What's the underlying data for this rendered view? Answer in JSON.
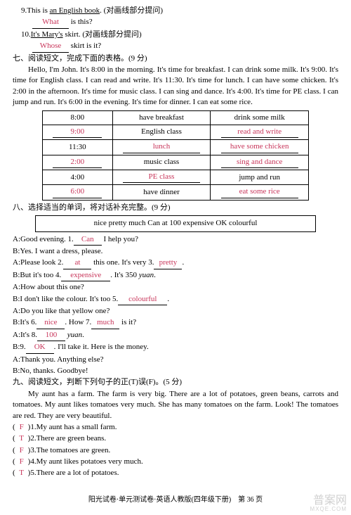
{
  "q9": {
    "num": "9.",
    "text_a": "This is ",
    "ul": "an English book",
    "text_b": ". (对画线部分提问)",
    "ans": "What",
    "tail": " is this?"
  },
  "q10": {
    "num": "10.",
    "ul": "It's Mary's",
    "text_b": " skirt. (对画线部分提问)",
    "ans": "Whose",
    "tail": " skirt is it?"
  },
  "s7": {
    "title": "七、阅读短文，完成下面的表格。(9 分)",
    "para": "Hello, I'm John. It's 8:00 in the morning. It's time for breakfast. I can drink some milk. It's 9:00. It's time for English class. I can read and write. It's 11:30. It's time for lunch. I can have some chicken. It's 2:00 in the afternoon. It's time for music class. I can sing and dance. It's 4:00. It's time for PE class. I can jump and run. It's 6:00 in the evening. It's time for dinner. I can eat some rice.",
    "rows": [
      {
        "c1": "8:00",
        "c1a": false,
        "c2": "have breakfast",
        "c2a": false,
        "c3": "drink some milk",
        "c3a": false
      },
      {
        "c1": "9:00",
        "c1a": true,
        "c2": "English class",
        "c2a": false,
        "c3": "read and write",
        "c3a": true
      },
      {
        "c1": "11:30",
        "c1a": false,
        "c2": "lunch",
        "c2a": true,
        "c3": "have some chicken",
        "c3a": true
      },
      {
        "c1": "2:00",
        "c1a": true,
        "c2": "music class",
        "c2a": false,
        "c3": "sing and dance",
        "c3a": true
      },
      {
        "c1": "4:00",
        "c1a": false,
        "c2": "PE class",
        "c2a": true,
        "c3": "jump and run",
        "c3a": false
      },
      {
        "c1": "6:00",
        "c1a": true,
        "c2": "have dinner",
        "c2a": false,
        "c3": "eat some rice",
        "c3a": true
      }
    ]
  },
  "s8": {
    "title": "八、选择适当的单词，将对话补充完整。(9 分)",
    "box": "nice    pretty    much    Can    at    100    expensive    OK    colourful",
    "l1a": "A:Good evening. 1.",
    "a1": "Can",
    "l1b": " I help you?",
    "l2": "B:Yes. I want a dress, please.",
    "l3a": "A:Please look 2.",
    "a2": "at",
    "l3b": " this one. It's very 3.",
    "a3": "pretty",
    "l3c": ".",
    "l4a": "B:But it's too 4.",
    "a4": "expensive",
    "l4b": ". It's 350 ",
    "l4i": "yuan",
    "l4c": ".",
    "l5": "A:How about this one?",
    "l6a": "B:I don't like the colour. It's too 5.",
    "a5": "colourful",
    "l6b": ".",
    "l7": "A:Do you like that yellow one?",
    "l8a": "B:It's 6.",
    "a6": "nice",
    "l8b": ". How 7.",
    "a7": "much",
    "l8c": " is it?",
    "l9a": "A:It's 8.",
    "a8": "100",
    "l9b": " ",
    "l9i": "yuan",
    "l9c": ".",
    "l10a": "B:9.",
    "a9": "OK",
    "l10b": ". I'll take it. Here is the money.",
    "l11": "A:Thank you. Anything else?",
    "l12": "B:No, thanks. Goodbye!"
  },
  "s9": {
    "title": "九、阅读短文，判断下列句子的正(T)误(F)。(5 分)",
    "para": "My aunt has a farm. The farm is very big. There are a lot of potatoes, green beans, carrots and tomatoes. My aunt likes tomatoes very much. She has many tomatoes on the farm. Look! The tomatoes are red. They are very beautiful.",
    "items": [
      {
        "ans": "F",
        "n": "1.",
        "t": "My aunt has a small farm."
      },
      {
        "ans": "T",
        "n": "2.",
        "t": "There are green beans."
      },
      {
        "ans": "F",
        "n": "3.",
        "t": "The tomatoes are green."
      },
      {
        "ans": "F",
        "n": "4.",
        "t": "My aunt likes potatoes very much."
      },
      {
        "ans": "T",
        "n": "5.",
        "t": "There are a lot of potatoes."
      }
    ]
  },
  "footer": "阳光试卷·单元测试卷·英语人教版(四年级下册)　第 36 页",
  "wm": {
    "a": "普案网",
    "b": "MXQE.COM"
  }
}
